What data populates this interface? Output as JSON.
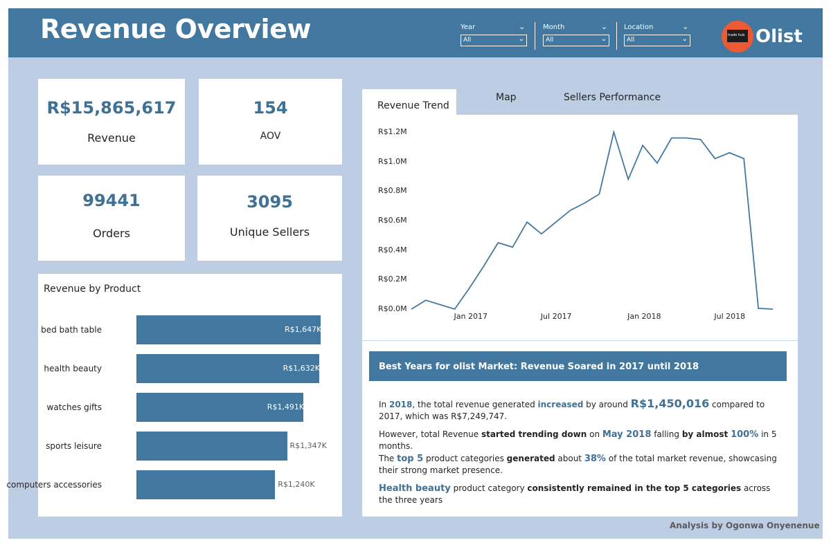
{
  "header": {
    "title": "Revenue Overview",
    "brand": "Olist",
    "logo_text": "trade hub",
    "slicers": [
      {
        "label": "Year",
        "value": "All"
      },
      {
        "label": "Month",
        "value": "All"
      },
      {
        "label": "Location",
        "value": "All"
      }
    ]
  },
  "kpis": {
    "revenue": {
      "value": "R$15,865,617",
      "label": "Revenue"
    },
    "aov": {
      "value": "154",
      "label": "AOV"
    },
    "orders": {
      "value": "99441",
      "label": "Orders"
    },
    "sellers": {
      "value": "3095",
      "label": "Unique Sellers"
    }
  },
  "product_chart": {
    "title": "Revenue by Product",
    "chart_data": {
      "type": "bar",
      "orientation": "horizontal",
      "categories": [
        "bed bath table",
        "health beauty",
        "watches gifts",
        "sports leisure",
        "computers accessories"
      ],
      "values": [
        1647,
        1632,
        1491,
        1347,
        1240
      ],
      "value_labels": [
        "R$1,647K",
        "R$1,632K",
        "R$1,491K",
        "R$1,347K",
        "R$1,240K"
      ],
      "unit": "R$ thousands"
    }
  },
  "tabs": [
    {
      "label": "Revenue Trend",
      "active": true
    },
    {
      "label": "Map",
      "active": false
    },
    {
      "label": "Sellers Performance",
      "active": false
    }
  ],
  "trend_chart": {
    "chart_data": {
      "type": "line",
      "x": [
        "2016-09",
        "2016-10",
        "2016-11",
        "2016-12",
        "2017-01",
        "2017-02",
        "2017-03",
        "2017-04",
        "2017-05",
        "2017-06",
        "2017-07",
        "2017-08",
        "2017-09",
        "2017-10",
        "2017-11",
        "2017-12",
        "2018-01",
        "2018-02",
        "2018-03",
        "2018-04",
        "2018-05",
        "2018-06",
        "2018-07",
        "2018-08",
        "2018-09",
        "2018-10"
      ],
      "values": [
        0.0,
        0.06,
        0.03,
        0.0,
        0.14,
        0.29,
        0.45,
        0.42,
        0.59,
        0.51,
        0.59,
        0.67,
        0.72,
        0.78,
        1.2,
        0.88,
        1.11,
        0.99,
        1.16,
        1.16,
        1.15,
        1.02,
        1.06,
        1.02,
        0.005,
        0.0
      ],
      "y_unit": "R$ millions",
      "ylim": [
        0,
        1.2
      ],
      "y_ticks": [
        "R$0.0M",
        "R$0.2M",
        "R$0.4M",
        "R$0.6M",
        "R$0.8M",
        "R$1.0M",
        "R$1.2M"
      ],
      "x_ticks": [
        "Jan 2017",
        "Jul 2017",
        "Jan 2018",
        "Jul 2018"
      ],
      "color": "#4278a0"
    }
  },
  "insights": {
    "banner": "Best Years for olist Market: Revenue Soared in 2017 until 2018",
    "p1": {
      "t1": "In ",
      "year": "2018",
      "t2": ", the total revenue generated ",
      "increased": "increased",
      "t3": " by around ",
      "amount": "R$1,450,016",
      "t4": " compared to 2017, which was R$7,249,747."
    },
    "p2": {
      "t1": "However, total Revenue ",
      "b1": "started trending down",
      "t2": " on ",
      "month": "May 2018",
      "t3": " falling ",
      "b2": "by almost",
      "t4": " ",
      "pct": "100%",
      "t5": " in 5 months."
    },
    "p3": {
      "t1": "The ",
      "top5": "top 5",
      "t2": " product categories ",
      "b1": "generated",
      "t3": " about ",
      "pct": "38%",
      "t4": " of the total market revenue, showcasing their strong market presence."
    },
    "p4": {
      "cat": "Health beauty",
      "t1": " product category ",
      "b1": "consistently remained in the top 5 categories",
      "t2": " across the three years"
    }
  },
  "footer": "Analysis by Ogonwa Onyenenue"
}
